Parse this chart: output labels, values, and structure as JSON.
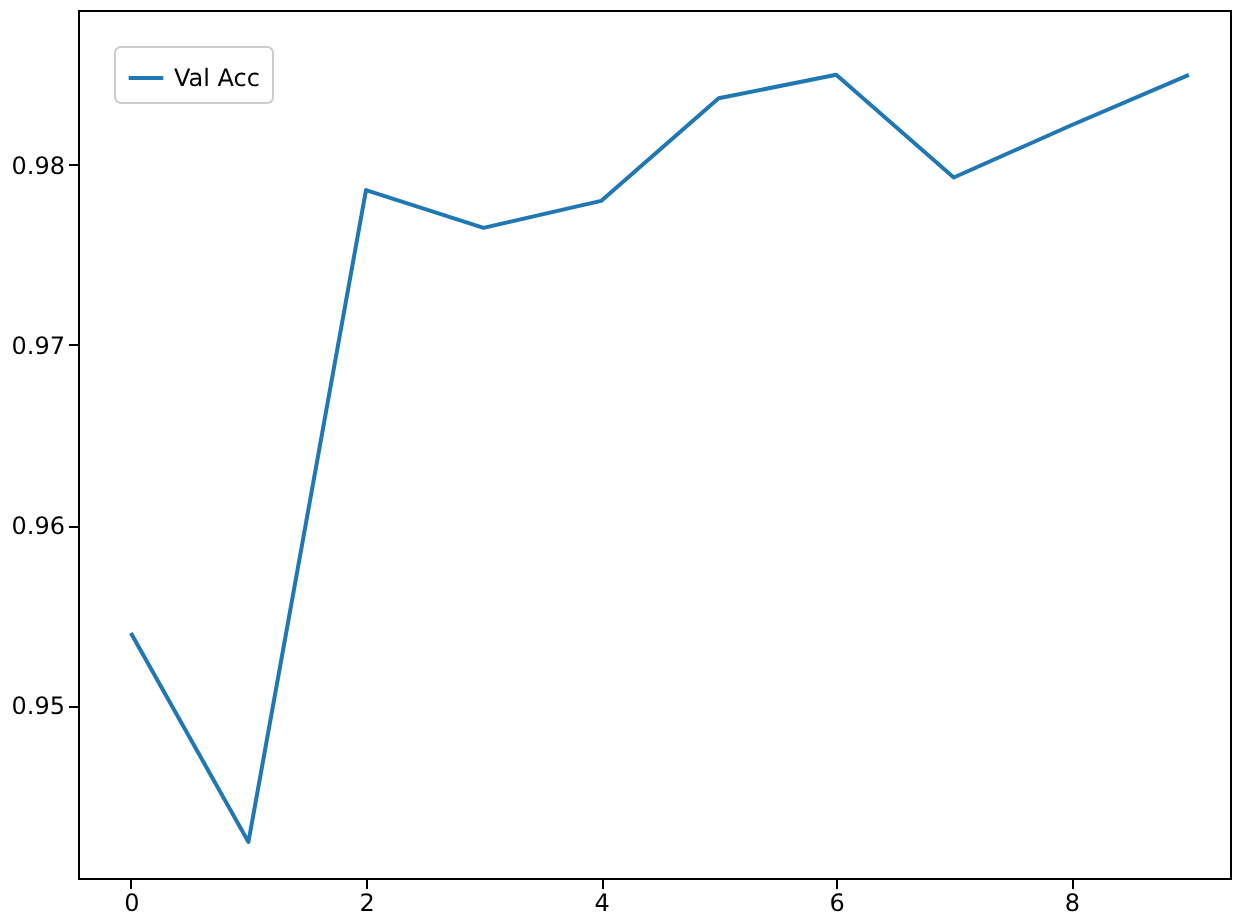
{
  "chart_data": {
    "type": "line",
    "x": [
      0,
      1,
      2,
      3,
      4,
      5,
      6,
      7,
      8,
      9
    ],
    "series": [
      {
        "name": "Val Acc",
        "color": "#1f77b4",
        "values": [
          0.954,
          0.9424,
          0.9786,
          0.9765,
          0.978,
          0.9837,
          0.985,
          0.9793,
          0.9822,
          0.985
        ]
      }
    ],
    "xlim": [
      -0.45,
      9.35
    ],
    "xticks": [
      0,
      2,
      4,
      6,
      8
    ],
    "ylim": [
      0.9404,
      0.9886
    ],
    "yticks": [
      0.95,
      0.96,
      0.97,
      0.98
    ],
    "grid": false,
    "legend": "top left",
    "marker": "none",
    "line_style": "solid"
  }
}
